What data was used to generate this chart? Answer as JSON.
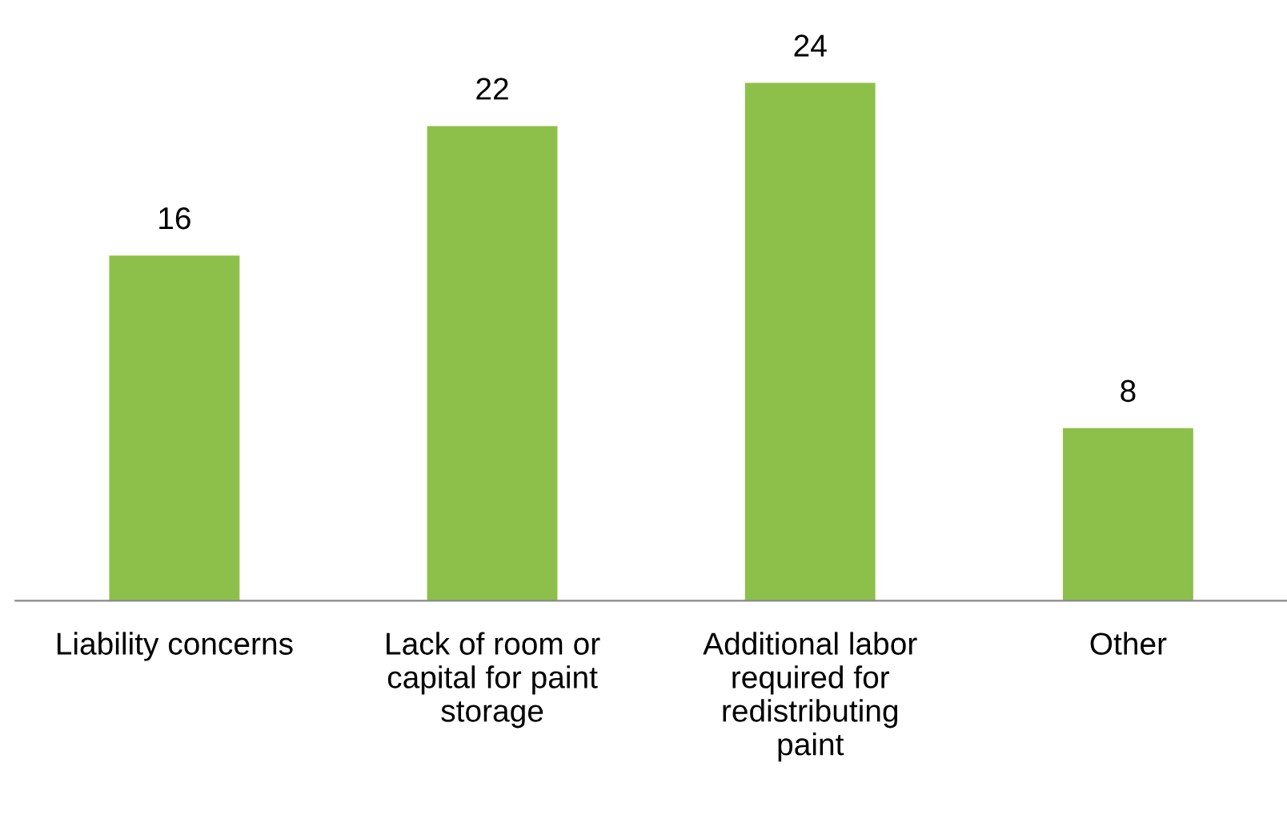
{
  "chart_data": {
    "type": "bar",
    "categories": [
      "Liability concerns",
      "Lack of room or capital for paint storage",
      "Additional labor required for redistributing paint",
      "Other"
    ],
    "values": [
      16,
      22,
      24,
      8
    ],
    "color": "#8dc04a",
    "data_labels": true,
    "grid": false,
    "legend": false
  }
}
